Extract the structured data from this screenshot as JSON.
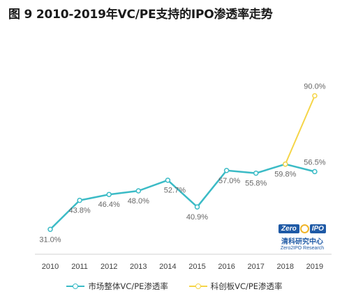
{
  "chart_data": {
    "type": "line",
    "title": "图 9 2010-2019年VC/PE支持的IPO渗透率走势",
    "categories": [
      "2010",
      "2011",
      "2012",
      "2013",
      "2014",
      "2015",
      "2016",
      "2017",
      "2018",
      "2019"
    ],
    "ylim": [
      20,
      100
    ],
    "grid": false,
    "legend_position": "bottom",
    "series": [
      {
        "name": "市场整体VC/PE渗透率",
        "color": "#3bbbc6",
        "values": [
          31.0,
          43.8,
          46.4,
          48.0,
          52.7,
          40.9,
          57.0,
          55.8,
          59.8,
          56.5
        ],
        "labels": [
          "31.0%",
          "43.8%",
          "46.4%",
          "48.0%",
          "52.7%",
          "40.9%",
          "57.0%",
          "55.8%",
          "59.8%",
          "56.5%"
        ]
      },
      {
        "name": "科创板VC/PE渗透率",
        "color": "#f5d547",
        "points": [
          {
            "x": "2018",
            "y": 59.8
          },
          {
            "x": "2019",
            "y": 90.0
          }
        ],
        "labels": [
          "90.0%"
        ]
      }
    ]
  },
  "logo": {
    "mark_left": "Zero",
    "mark_right": "IPO",
    "name_cn": "清科研究中心",
    "name_en": "Zero2IPO Research"
  }
}
